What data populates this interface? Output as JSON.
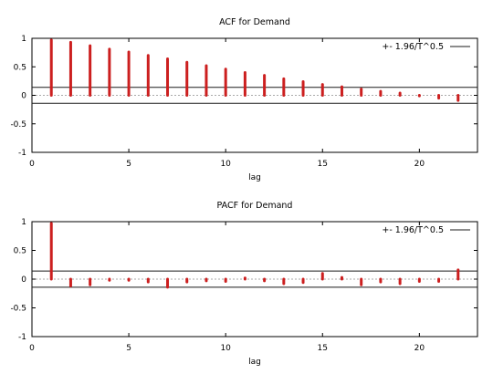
{
  "chart_data": [
    {
      "type": "bar",
      "title": "ACF for Demand",
      "xlabel": "lag",
      "ylabel": "",
      "xlim": [
        0,
        23
      ],
      "ylim": [
        -1,
        1
      ],
      "xticks": [
        "0",
        "5",
        "10",
        "15",
        "20"
      ],
      "yticks": [
        "1",
        "0.5",
        "0",
        "-0.5",
        "-1"
      ],
      "confidence_band": 0.14,
      "legend": {
        "label": "+- 1.96/T^0.5",
        "position": "top-right"
      },
      "series": [
        {
          "x": [
            1,
            2,
            3,
            4,
            5,
            6,
            7,
            8,
            9,
            10,
            11,
            12,
            13,
            14,
            15,
            16,
            17,
            18,
            19,
            20,
            21,
            22
          ],
          "values": [
            0.97,
            0.93,
            0.87,
            0.81,
            0.76,
            0.7,
            0.64,
            0.58,
            0.52,
            0.46,
            0.4,
            0.35,
            0.29,
            0.24,
            0.19,
            0.15,
            0.11,
            0.07,
            0.04,
            -0.01,
            -0.05,
            -0.09
          ]
        }
      ],
      "colors": {
        "bars": "#cc1f1f",
        "band": "#1a1a1a",
        "zero": "#aaaaaa"
      }
    },
    {
      "type": "bar",
      "title": "PACF for Demand",
      "xlabel": "lag",
      "ylabel": "",
      "xlim": [
        0,
        23
      ],
      "ylim": [
        -1,
        1
      ],
      "xticks": [
        "0",
        "5",
        "10",
        "15",
        "20"
      ],
      "yticks": [
        "1",
        "0.5",
        "0",
        "-0.5",
        "-1"
      ],
      "confidence_band": 0.14,
      "legend": {
        "label": "+- 1.96/T^0.5",
        "position": "top-right"
      },
      "series": [
        {
          "x": [
            1,
            2,
            3,
            4,
            5,
            6,
            7,
            8,
            9,
            10,
            11,
            12,
            13,
            14,
            15,
            16,
            17,
            18,
            19,
            20,
            21,
            22
          ],
          "values": [
            0.97,
            -0.12,
            -0.1,
            -0.02,
            -0.02,
            -0.05,
            -0.14,
            -0.05,
            -0.03,
            -0.04,
            0.02,
            -0.03,
            -0.08,
            -0.06,
            0.1,
            0.03,
            -0.1,
            -0.05,
            -0.08,
            -0.04,
            -0.04,
            0.16
          ]
        }
      ],
      "colors": {
        "bars": "#cc1f1f",
        "band": "#1a1a1a",
        "zero": "#aaaaaa"
      }
    }
  ]
}
